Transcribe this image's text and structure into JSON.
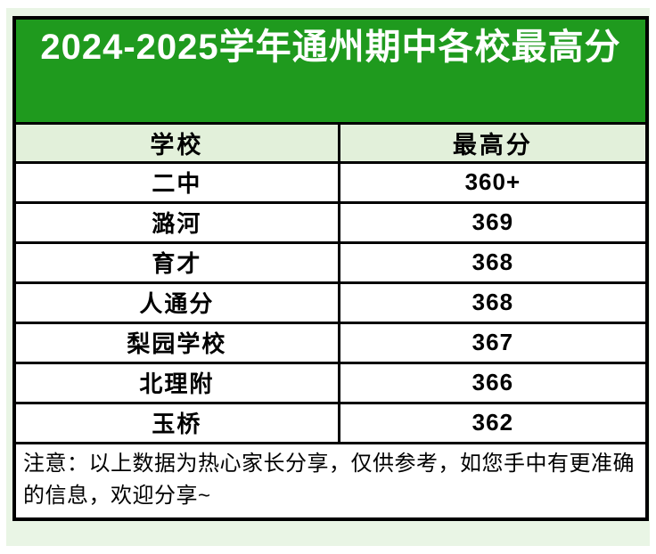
{
  "page": {
    "title": "2024-2025学年通州期中各校最高分"
  },
  "table": {
    "columns": {
      "school": "学校",
      "score": "最高分"
    },
    "rows": [
      {
        "school": "二中",
        "score": "360+"
      },
      {
        "school": "潞河",
        "score": "369"
      },
      {
        "school": "育才",
        "score": "368"
      },
      {
        "school": "人通分",
        "score": "368"
      },
      {
        "school": "梨园学校",
        "score": "367"
      },
      {
        "school": "北理附",
        "score": "366"
      },
      {
        "school": "玉桥",
        "score": "362"
      }
    ],
    "note": "注意：以上数据为热心家长分享，仅供参考，如您手中有更准确的信息，欢迎分享~"
  },
  "colors": {
    "title_background": "#1f9a1e",
    "title_text": "#ffffff",
    "header_row_background": "#e2f0da",
    "border": "#000000",
    "page_halo": "#e9f5e5"
  },
  "chart_data": {
    "type": "table",
    "title": "2024-2025学年通州期中各校最高分",
    "columns": [
      "学校",
      "最高分"
    ],
    "rows": [
      [
        "二中",
        "360+"
      ],
      [
        "潞河",
        "369"
      ],
      [
        "育才",
        "368"
      ],
      [
        "人通分",
        "368"
      ],
      [
        "梨园学校",
        "367"
      ],
      [
        "北理附",
        "366"
      ],
      [
        "玉桥",
        "362"
      ]
    ],
    "note": "注意：以上数据为热心家长分享，仅供参考，如您手中有更准确的信息，欢迎分享~"
  }
}
